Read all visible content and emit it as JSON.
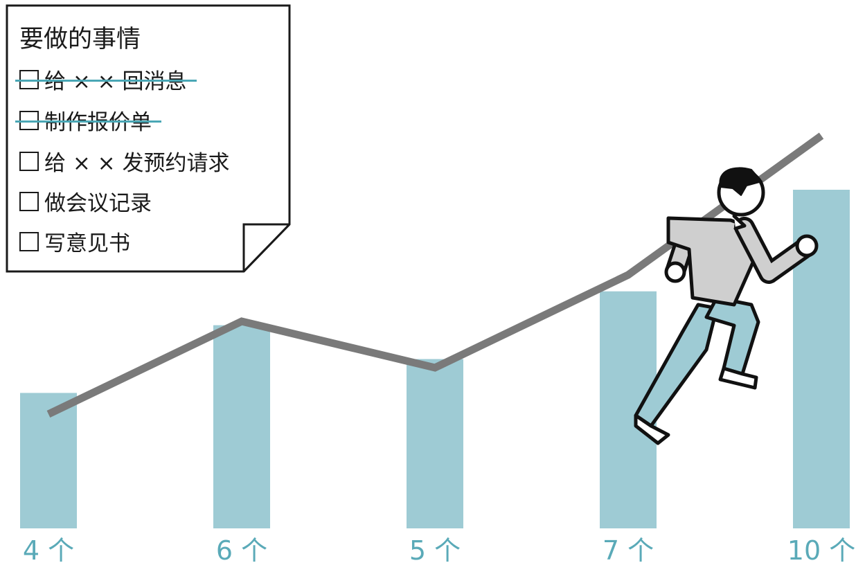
{
  "todo_note": {
    "title": "要做的事情",
    "items": [
      {
        "text": "给 × × 回消息",
        "done": true
      },
      {
        "text": "制作报价单",
        "done": true
      },
      {
        "text": "给 × × 发预约请求",
        "done": false
      },
      {
        "text": "做会议记录",
        "done": false
      },
      {
        "text": "写意见书",
        "done": false
      }
    ]
  },
  "colors": {
    "bar": "#9ecbd4",
    "line": "#7a7a7a",
    "label": "#5aaab8",
    "strike": "#4aa7b5",
    "person_shirt": "#cfcfcf",
    "person_pants": "#9ecbd4"
  },
  "illustration": "running-person-icon",
  "chart_data": {
    "type": "bar",
    "categories": [
      "4 个",
      "6 个",
      "5 个",
      "7 个",
      "10 个"
    ],
    "values": [
      4,
      6,
      5,
      7,
      10
    ],
    "line_overlay": true,
    "ylim": [
      0,
      10.5
    ],
    "grid": false
  }
}
